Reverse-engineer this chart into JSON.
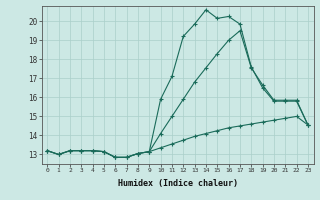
{
  "xlabel": "Humidex (Indice chaleur)",
  "x_ticks": [
    0,
    1,
    2,
    3,
    4,
    5,
    6,
    7,
    8,
    9,
    10,
    11,
    12,
    13,
    14,
    15,
    16,
    17,
    18,
    19,
    20,
    21,
    22,
    23
  ],
  "xlim": [
    -0.5,
    23.5
  ],
  "ylim": [
    12.5,
    20.8
  ],
  "y_ticks": [
    13,
    14,
    15,
    16,
    17,
    18,
    19,
    20
  ],
  "bg_color": "#cce8e4",
  "grid_color": "#aacfca",
  "line_color": "#1a6b5a",
  "line1_y": [
    13.2,
    13.0,
    13.2,
    13.2,
    13.2,
    13.15,
    12.85,
    12.85,
    13.05,
    13.15,
    15.9,
    17.1,
    19.2,
    19.85,
    20.6,
    20.15,
    20.25,
    19.85,
    17.6,
    16.5,
    15.8,
    15.8,
    15.8,
    14.55
  ],
  "line2_y": [
    13.2,
    13.0,
    13.2,
    13.2,
    13.2,
    13.15,
    12.85,
    12.85,
    13.05,
    13.15,
    13.35,
    13.55,
    13.75,
    13.95,
    14.1,
    14.25,
    14.4,
    14.5,
    14.6,
    14.7,
    14.8,
    14.9,
    15.0,
    14.55
  ],
  "line3_y": [
    13.2,
    13.0,
    13.2,
    13.2,
    13.2,
    13.15,
    12.85,
    12.85,
    13.05,
    13.15,
    14.1,
    15.0,
    15.9,
    16.8,
    17.55,
    18.3,
    19.0,
    19.5,
    17.55,
    16.65,
    15.85,
    15.85,
    15.85,
    14.55
  ]
}
